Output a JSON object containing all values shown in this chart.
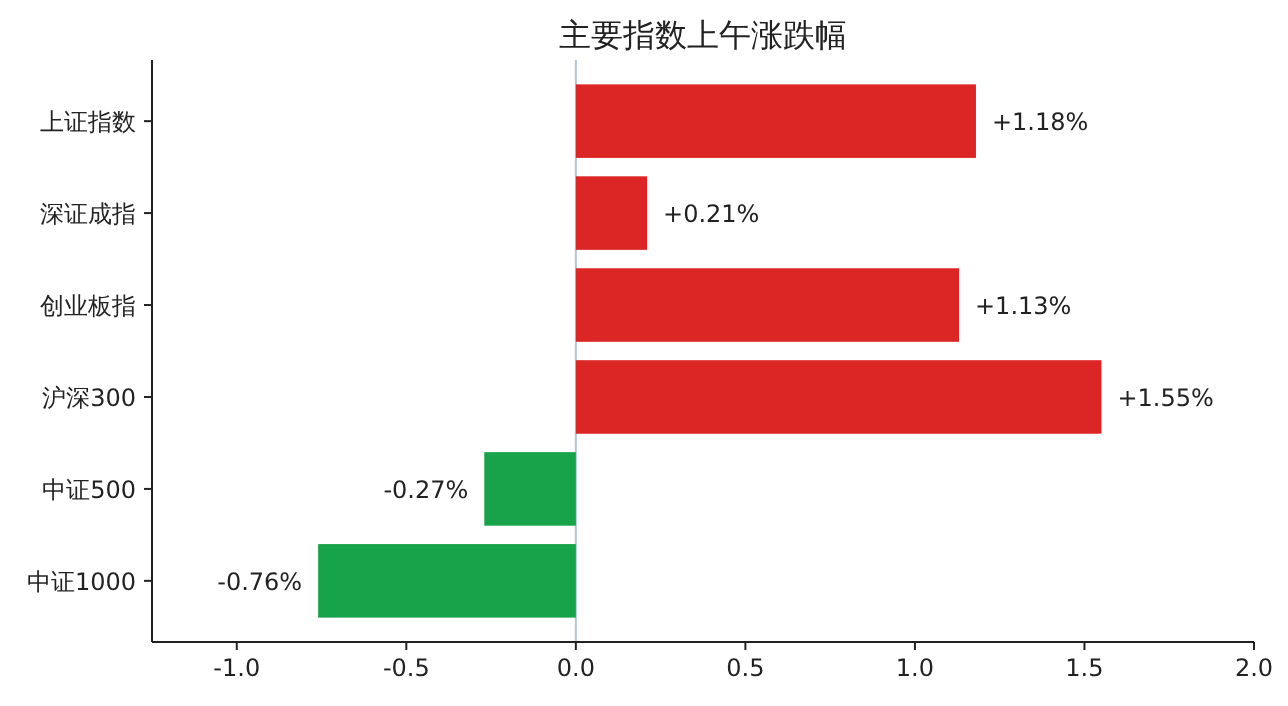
{
  "chart_data": {
    "type": "bar",
    "orientation": "horizontal",
    "title": "主要指数上午涨跌幅",
    "categories": [
      "上证指数",
      "深证成指",
      "创业板指",
      "沪深300",
      "中证500",
      "中证1000"
    ],
    "values": [
      1.18,
      0.21,
      1.13,
      1.55,
      -0.27,
      -0.76
    ],
    "colors": [
      "#dc2626",
      "#dc2626",
      "#dc2626",
      "#dc2626",
      "#16a34a",
      "#16a34a"
    ],
    "value_labels": [
      "+1.18%",
      "+0.21%",
      "+1.13%",
      "+1.55%",
      "-0.27%",
      "-0.76%"
    ],
    "xlim": [
      -1.25,
      2.0
    ],
    "xticks": [
      {
        "value": -1,
        "label": "-1.0"
      },
      {
        "value": -0.5,
        "label": "-0.5"
      },
      {
        "value": 0,
        "label": "0.0"
      },
      {
        "value": 0.5,
        "label": "0.5"
      },
      {
        "value": 1,
        "label": "1.0"
      },
      {
        "value": 1.5,
        "label": "1.5"
      },
      {
        "value": 2,
        "label": "2.0"
      }
    ],
    "ref_lines": [
      {
        "axis": "x",
        "value": 0,
        "color": "#b0c4de"
      }
    ]
  }
}
